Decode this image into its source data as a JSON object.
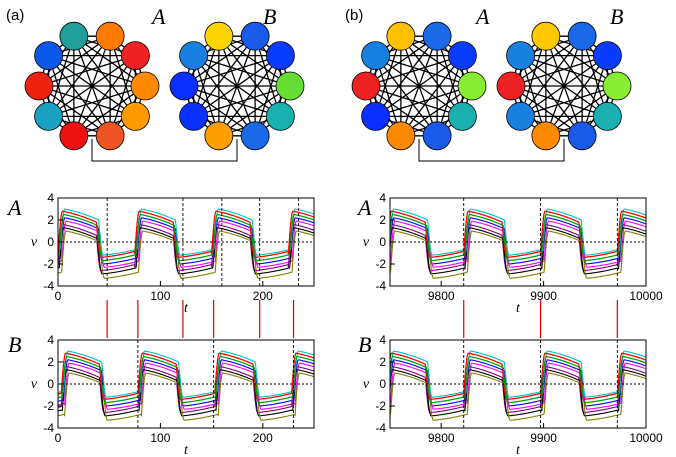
{
  "figure": {
    "panels": [
      {
        "label": "(a)",
        "networks": [
          {
            "label": "A",
            "node_colors": [
              "#1f9e9a",
              "#ff7a00",
              "#ee2222",
              "#ff8a00",
              "#ff9a00",
              "#ee5522",
              "#ee1111",
              "#1aa0c0",
              "#ee2211",
              "#0a58e8"
            ]
          },
          {
            "label": "B",
            "node_colors": [
              "#ffd400",
              "#1a5ae8",
              "#0a3cff",
              "#66dd33",
              "#19b0b0",
              "#1a6ae8",
              "#ffa000",
              "#0a30ff",
              "#0a2fff",
              "#1a80e0"
            ]
          }
        ],
        "link_label": ""
      },
      {
        "label": "(b)",
        "networks": [
          {
            "label": "A",
            "node_colors": [
              "#ffc000",
              "#1a6ae8",
              "#0a3cff",
              "#88ee33",
              "#1ab0b0",
              "#1a5ae8",
              "#ff8a00",
              "#0a2fff",
              "#ee2222",
              "#1a80e0"
            ]
          },
          {
            "label": "B",
            "node_colors": [
              "#ffc800",
              "#1a6ae8",
              "#0a3cff",
              "#88ee33",
              "#1ab0b0",
              "#1a5ae8",
              "#ff8a00",
              "#1a80e0",
              "#ee2222",
              "#1a80e0"
            ]
          }
        ]
      }
    ]
  },
  "chart_data": [
    {
      "type": "line",
      "row_label": "A",
      "xlabel": "t",
      "ylabel": "v",
      "xlim": [
        0,
        250
      ],
      "ylim": [
        -4,
        4
      ],
      "xticks": [
        "0",
        "100",
        "200"
      ],
      "xtick_values": [
        0,
        100,
        200
      ],
      "yticks": [
        "-4",
        "-2",
        "0",
        "2",
        "4"
      ],
      "ytick_values": [
        -4,
        -2,
        0,
        2,
        4
      ],
      "spike_times": [
        48,
        122,
        160,
        197,
        235
      ],
      "period": 75,
      "phase": 0
    },
    {
      "type": "line",
      "row_label": "A",
      "xlabel": "t",
      "ylabel": "v",
      "xlim": [
        9750,
        10000
      ],
      "ylim": [
        -4,
        4
      ],
      "xticks": [
        "9800",
        "9900",
        "10000"
      ],
      "xtick_values": [
        9800,
        9900,
        10000
      ],
      "yticks": [
        "-4",
        "-2",
        "0",
        "2",
        "4"
      ],
      "ytick_values": [
        -4,
        -2,
        0,
        2,
        4
      ],
      "spike_times": [
        9822,
        9897,
        9972
      ],
      "period": 75,
      "phase": 9822
    },
    {
      "type": "line",
      "row_label": "B",
      "xlabel": "t",
      "ylabel": "v",
      "xlim": [
        0,
        250
      ],
      "ylim": [
        -4,
        4
      ],
      "xticks": [
        "0",
        "100",
        "200"
      ],
      "xtick_values": [
        0,
        100,
        200
      ],
      "yticks": [
        "-4",
        "-2",
        "0",
        "2",
        "4"
      ],
      "ytick_values": [
        -4,
        -2,
        0,
        2,
        4
      ],
      "spike_times": [
        78,
        152,
        230
      ],
      "period": 75,
      "phase": 3
    },
    {
      "type": "line",
      "row_label": "B",
      "xlabel": "t",
      "ylabel": "v",
      "xlim": [
        9750,
        10000
      ],
      "ylim": [
        -4,
        4
      ],
      "xticks": [
        "9800",
        "9900",
        "10000"
      ],
      "xtick_values": [
        9800,
        9900,
        10000
      ],
      "yticks": [
        "-4",
        "-2",
        "0",
        "2",
        "4"
      ],
      "ytick_values": [
        -4,
        -2,
        0,
        2,
        4
      ],
      "spike_times": [
        9822,
        9897,
        9972
      ],
      "period": 75,
      "phase": 9822
    }
  ],
  "series_colors": [
    "#ff0000",
    "#00a000",
    "#0000ff",
    "#ff00ff",
    "#800080",
    "#000000",
    "#00c0c0",
    "#808000"
  ],
  "marker_color": "#e00000"
}
